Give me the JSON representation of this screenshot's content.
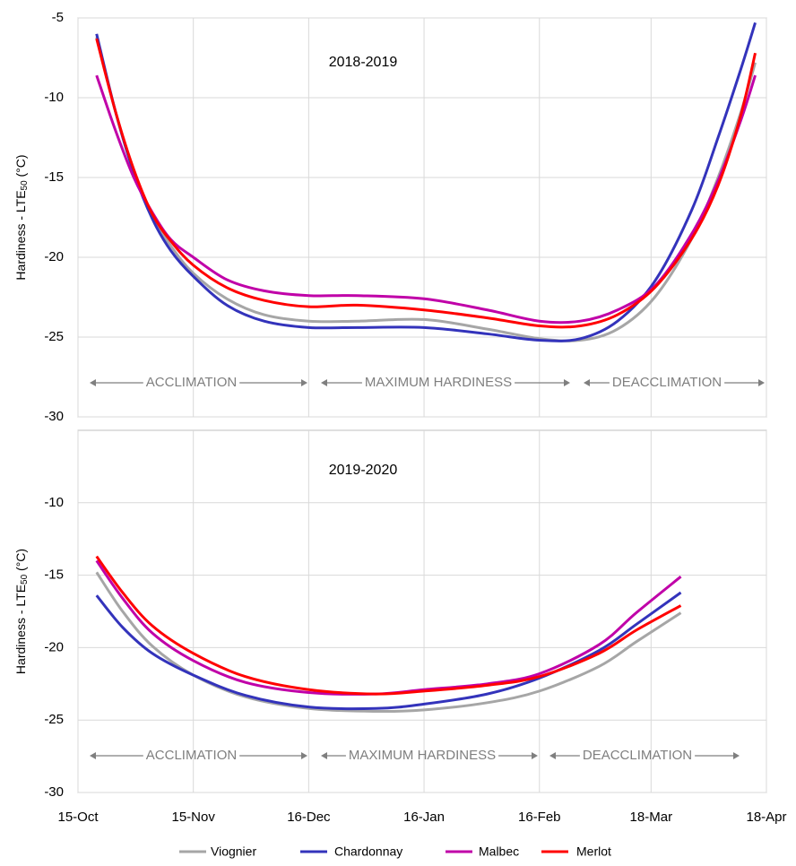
{
  "chart_data": [
    {
      "type": "line",
      "title": "2018-2019",
      "ylabel": {
        "text": "Hardiness - LTE",
        "subscript": "50",
        "unit": "(°C)"
      },
      "xlim": [
        0,
        185
      ],
      "xticks": [
        0,
        31,
        62,
        93,
        124,
        154,
        185
      ],
      "ylim": [
        -30,
        -5
      ],
      "yticks": [
        -5,
        -10,
        -15,
        -20,
        -25,
        -30
      ],
      "grid": true,
      "phases": [
        "ACCLIMATION",
        "MAXIMUM HARDINESS",
        "DEACCLIMATION"
      ],
      "x": [
        5,
        10,
        15,
        20,
        25,
        31,
        40,
        50,
        62,
        75,
        93,
        110,
        124,
        135,
        145,
        155,
        165,
        172,
        178,
        182
      ],
      "series": [
        {
          "name": "Viognier",
          "color": "#a6a6a6",
          "values": [
            -6.2,
            -10.8,
            -14.6,
            -17.4,
            -19.3,
            -21,
            -22.6,
            -23.6,
            -24.0,
            -24.0,
            -23.9,
            -24.5,
            -25.1,
            -25.2,
            -24.5,
            -22.5,
            -18.8,
            -15,
            -11,
            -7.8
          ]
        },
        {
          "name": "Chardonnay",
          "color": "#3333bb",
          "values": [
            -6.0,
            -10.8,
            -14.7,
            -17.6,
            -19.6,
            -21.2,
            -23.0,
            -24.0,
            -24.4,
            -24.4,
            -24.4,
            -24.8,
            -25.2,
            -25.1,
            -24.0,
            -21.5,
            -17.0,
            -12.5,
            -8.3,
            -5.3
          ]
        },
        {
          "name": "Malbec",
          "color": "#c000a8",
          "values": [
            -8.6,
            -12.0,
            -15.0,
            -17.2,
            -18.9,
            -20.0,
            -21.4,
            -22.1,
            -22.4,
            -22.4,
            -22.6,
            -23.3,
            -24.0,
            -24.0,
            -23.3,
            -21.8,
            -18.5,
            -15.2,
            -11.5,
            -8.6
          ]
        },
        {
          "name": "Merlot",
          "color": "#ff0000",
          "values": [
            -6.3,
            -10.8,
            -14.5,
            -17.3,
            -19.0,
            -20.5,
            -21.9,
            -22.7,
            -23.1,
            -23.0,
            -23.3,
            -23.8,
            -24.3,
            -24.3,
            -23.6,
            -21.9,
            -18.8,
            -15.5,
            -11.2,
            -7.2
          ]
        }
      ]
    },
    {
      "type": "line",
      "title": "2019-2020",
      "ylabel": {
        "text": "Hardiness - LTE",
        "subscript": "50",
        "unit": "(°C)"
      },
      "xlim": [
        0,
        185
      ],
      "xticks": [
        {
          "value": 0,
          "label": "15-Oct"
        },
        {
          "value": 31,
          "label": "15-Nov"
        },
        {
          "value": 62,
          "label": "16-Dec"
        },
        {
          "value": 93,
          "label": "16-Jan"
        },
        {
          "value": 124,
          "label": "16-Feb"
        },
        {
          "value": 154,
          "label": "18-Mar"
        },
        {
          "value": 185,
          "label": "18-Apr"
        }
      ],
      "ylim": [
        -30,
        -5
      ],
      "yticks": [
        -10,
        -15,
        -20,
        -25,
        -30
      ],
      "grid": true,
      "phases": [
        "ACCLIMATION",
        "MAXIMUM HARDINESS",
        "DEACCLIMATION"
      ],
      "x": [
        5,
        12,
        20,
        31,
        45,
        62,
        80,
        93,
        110,
        124,
        140,
        150,
        162
      ],
      "series": [
        {
          "name": "Viognier",
          "color": "#a6a6a6",
          "values": [
            -14.8,
            -17.5,
            -19.9,
            -21.9,
            -23.4,
            -24.2,
            -24.4,
            -24.3,
            -23.8,
            -23.0,
            -21.3,
            -19.6,
            -17.6
          ]
        },
        {
          "name": "Chardonnay",
          "color": "#3333bb",
          "values": [
            -16.4,
            -18.6,
            -20.4,
            -21.9,
            -23.3,
            -24.1,
            -24.2,
            -23.9,
            -23.2,
            -22.1,
            -20.2,
            -18.4,
            -16.2
          ]
        },
        {
          "name": "Malbec",
          "color": "#c000a8",
          "values": [
            -14.0,
            -16.6,
            -19.0,
            -20.9,
            -22.4,
            -23.1,
            -23.2,
            -22.9,
            -22.5,
            -21.8,
            -19.8,
            -17.6,
            -15.1
          ]
        },
        {
          "name": "Merlot",
          "color": "#ff0000",
          "values": [
            -13.7,
            -16.2,
            -18.5,
            -20.4,
            -22.0,
            -22.9,
            -23.2,
            -23.0,
            -22.6,
            -22.0,
            -20.4,
            -18.8,
            -17.1
          ]
        }
      ]
    }
  ]
}
